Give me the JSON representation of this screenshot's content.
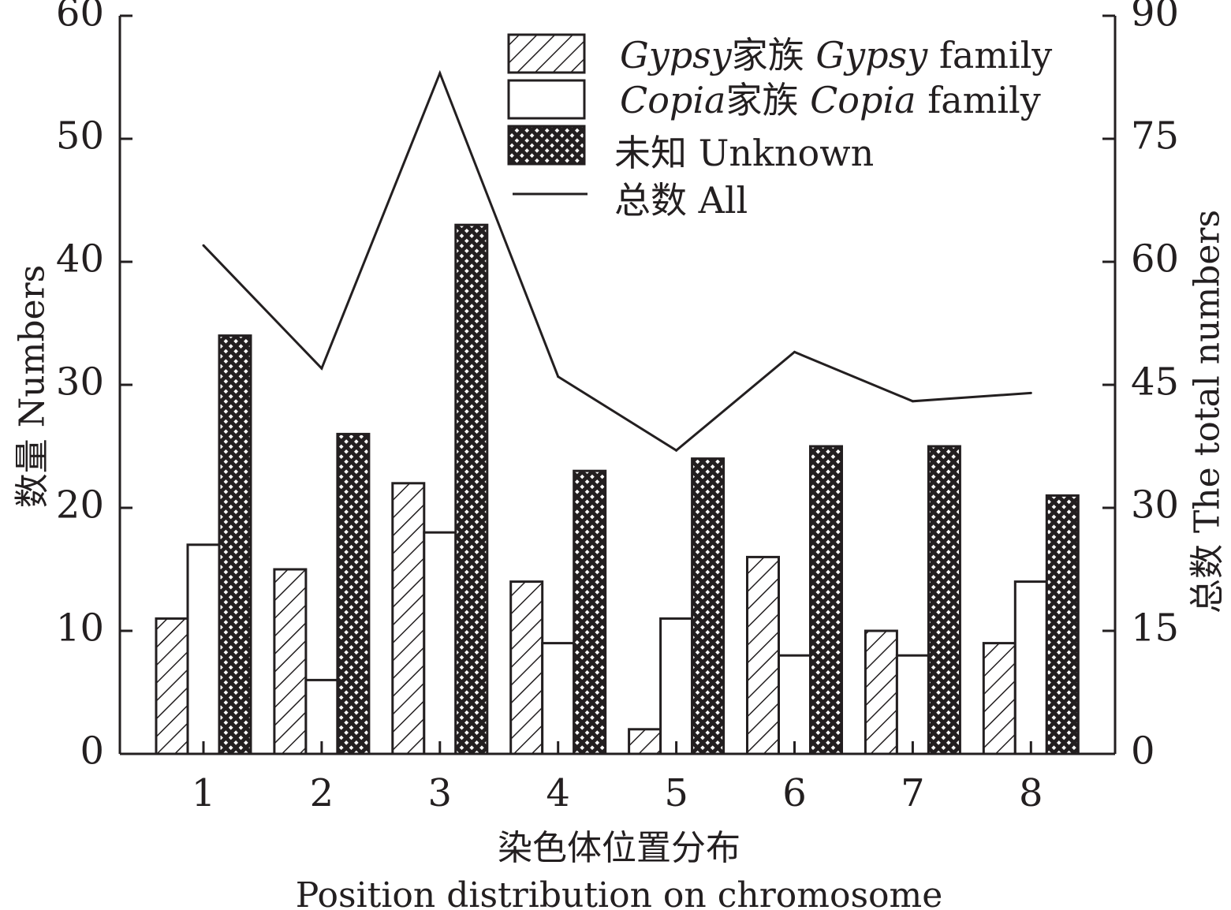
{
  "chart_data": {
    "type": "bar",
    "categories": [
      "1",
      "2",
      "3",
      "4",
      "5",
      "6",
      "7",
      "8"
    ],
    "series": [
      {
        "name_zh": "家族",
        "name_italic": "Gypsy",
        "name_en": "family",
        "pattern": "hatch",
        "axis": "left",
        "values": [
          11,
          15,
          22,
          14,
          2,
          16,
          10,
          9
        ]
      },
      {
        "name_zh": "家族",
        "name_italic": "Copia",
        "name_en": "family",
        "pattern": "white",
        "axis": "left",
        "values": [
          17,
          6,
          18,
          9,
          11,
          8,
          8,
          14
        ]
      },
      {
        "name": "未知 Unknown",
        "pattern": "crosshatch",
        "axis": "left",
        "values": [
          34,
          26,
          43,
          23,
          24,
          25,
          25,
          21
        ]
      },
      {
        "name": "总数 All",
        "type": "line",
        "axis": "right",
        "values": [
          62,
          47,
          83,
          46,
          37,
          49,
          43,
          44
        ]
      }
    ],
    "ylabel": "数量 Numbers",
    "y2label": "总数 The total numbers",
    "xlabel_zh": "染色体位置分布",
    "xlabel_en": "Position distribution on chromosome",
    "ylim": [
      0,
      60
    ],
    "y2lim": [
      0,
      90
    ],
    "yticks": [
      "0",
      "10",
      "20",
      "30",
      "40",
      "50",
      "60"
    ],
    "y2ticks": [
      "0",
      "15",
      "30",
      "45",
      "60",
      "75",
      "90"
    ],
    "grid": false,
    "legend_position": "top-right",
    "colors": {
      "ink": "#231f20",
      "background": "#ffffff"
    }
  }
}
